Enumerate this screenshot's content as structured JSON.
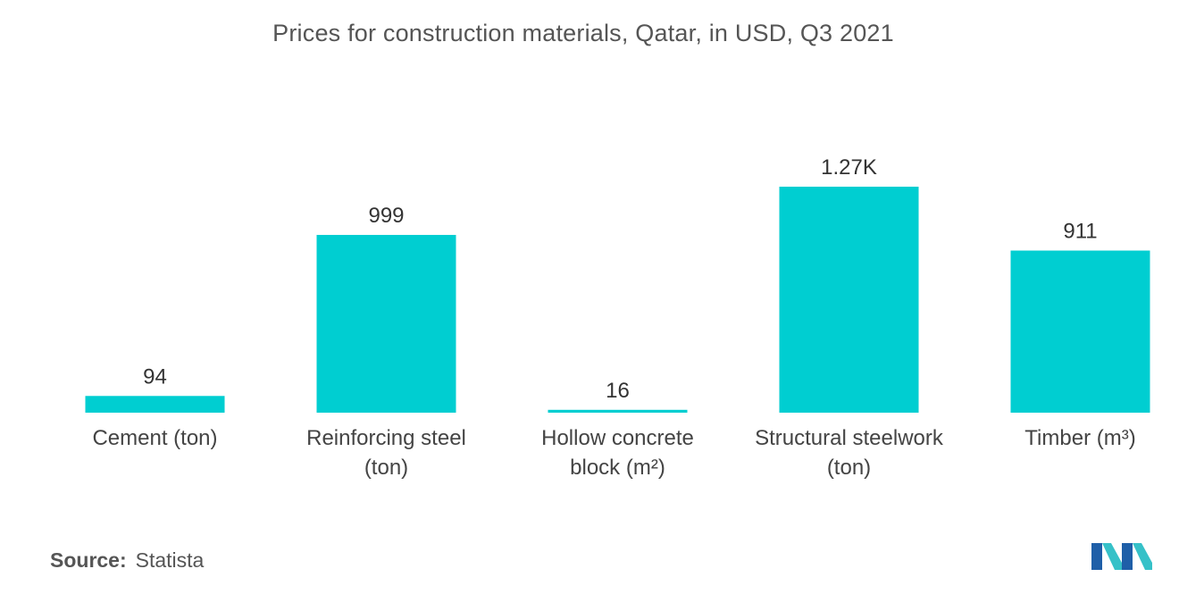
{
  "chart_data": {
    "type": "bar",
    "title": "Prices for construction materials, Qatar, in USD, Q3 2021",
    "categories": [
      [
        "Cement (ton)"
      ],
      [
        "Reinforcing steel",
        "(ton)"
      ],
      [
        "Hollow concrete",
        "block (m²)"
      ],
      [
        "Structural steelwork",
        "(ton)"
      ],
      [
        "Timber (m³)"
      ]
    ],
    "values": [
      94,
      999,
      16,
      1270,
      911
    ],
    "data_labels": [
      "94",
      "999",
      "16",
      "1.27K",
      "911"
    ],
    "bar_color": "#00CED1",
    "ylim": [
      0,
      1270
    ],
    "grid": false,
    "legend": "none"
  },
  "source": {
    "label": "Source:",
    "value": "Statista"
  },
  "logo": {
    "name": "mordor-intelligence-logo",
    "colors": [
      "#1F5FA8",
      "#36C1C8"
    ]
  }
}
